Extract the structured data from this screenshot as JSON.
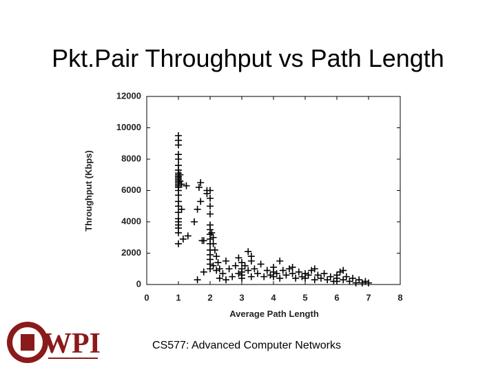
{
  "chart_data": {
    "type": "scatter",
    "title": "Pkt.Pair Throughput vs Path Length",
    "x_label": "Average Path Length",
    "y_label": "Throughput (Kbps)",
    "xlim": [
      0,
      8
    ],
    "xticks": [
      0,
      1,
      2,
      3,
      4,
      5,
      6,
      7,
      8
    ],
    "ylim": [
      0,
      12000
    ],
    "yticks": [
      0,
      2000,
      4000,
      6000,
      8000,
      10000,
      12000
    ],
    "color": "#000000",
    "marker": "+",
    "x": [
      1,
      1,
      1,
      1,
      1,
      1,
      1,
      1,
      1,
      1,
      1,
      1,
      1,
      1,
      1,
      1,
      1,
      1,
      1,
      1,
      1,
      1,
      1,
      1,
      1,
      1,
      1,
      1,
      1.05,
      1.05,
      1.1,
      1.1,
      1.15,
      1.25,
      1.3,
      1.5,
      1.6,
      1.65,
      1.7,
      1.7,
      1.75,
      1.8,
      1.9,
      1.9,
      2,
      2,
      2,
      2,
      2,
      2,
      2,
      2,
      2,
      2,
      2,
      2,
      2,
      2,
      2.05,
      2.1,
      2.1,
      2.1,
      2.15,
      2.2,
      2.2,
      2.25,
      2.3,
      2.3,
      2.4,
      2.5,
      2.5,
      1.6,
      1.8,
      2.6,
      2.7,
      2.8,
      2.9,
      3,
      3,
      3,
      3,
      3,
      3.1,
      3.2,
      3.2,
      3.3,
      3.3,
      3.4,
      3.5,
      3.6,
      3.7,
      3.8,
      3.9,
      4,
      4,
      4,
      4.1,
      4.2,
      4.2,
      4.3,
      4.4,
      4.5,
      4.6,
      4.7,
      4.8,
      4.9,
      5,
      5,
      5.1,
      5.2,
      5.3,
      5.4,
      5.5,
      5.6,
      5.7,
      5.8,
      5.9,
      6,
      6,
      6,
      6.1,
      6.2,
      6.3,
      6.4,
      6.5,
      6.6,
      6.7,
      6.8,
      6.9,
      7,
      3.3,
      2.9,
      4.6,
      5.3,
      6.2
    ],
    "y": [
      9500,
      9200,
      8900,
      8300,
      8000,
      7600,
      7300,
      7100,
      7000,
      6900,
      6800,
      6700,
      6600,
      6500,
      6400,
      6300,
      6200,
      6000,
      5700,
      5300,
      5000,
      4600,
      4200,
      4000,
      3800,
      3600,
      3300,
      2600,
      7000,
      6600,
      6400,
      4800,
      2900,
      6300,
      3100,
      4000,
      4800,
      6200,
      6500,
      5300,
      2800,
      2800,
      6000,
      5800,
      6000,
      5500,
      5000,
      4500,
      3800,
      3500,
      3200,
      2900,
      2600,
      2200,
      1900,
      1600,
      1300,
      1000,
      3300,
      3000,
      2600,
      1200,
      2200,
      1800,
      900,
      1400,
      1000,
      400,
      700,
      1500,
      300,
      300,
      800,
      1000,
      500,
      1200,
      700,
      1400,
      1000,
      800,
      600,
      400,
      1200,
      2100,
      900,
      1500,
      500,
      1000,
      700,
      1300,
      500,
      900,
      600,
      1100,
      800,
      500,
      700,
      1500,
      400,
      900,
      600,
      1000,
      700,
      400,
      800,
      500,
      700,
      400,
      600,
      900,
      300,
      600,
      400,
      700,
      300,
      500,
      200,
      600,
      400,
      200,
      800,
      300,
      500,
      200,
      400,
      100,
      300,
      100,
      200,
      100,
      1800,
      1700,
      1100,
      1000,
      900
    ]
  },
  "footer": "CS577: Advanced Computer Networks",
  "logo_text": "WPI"
}
